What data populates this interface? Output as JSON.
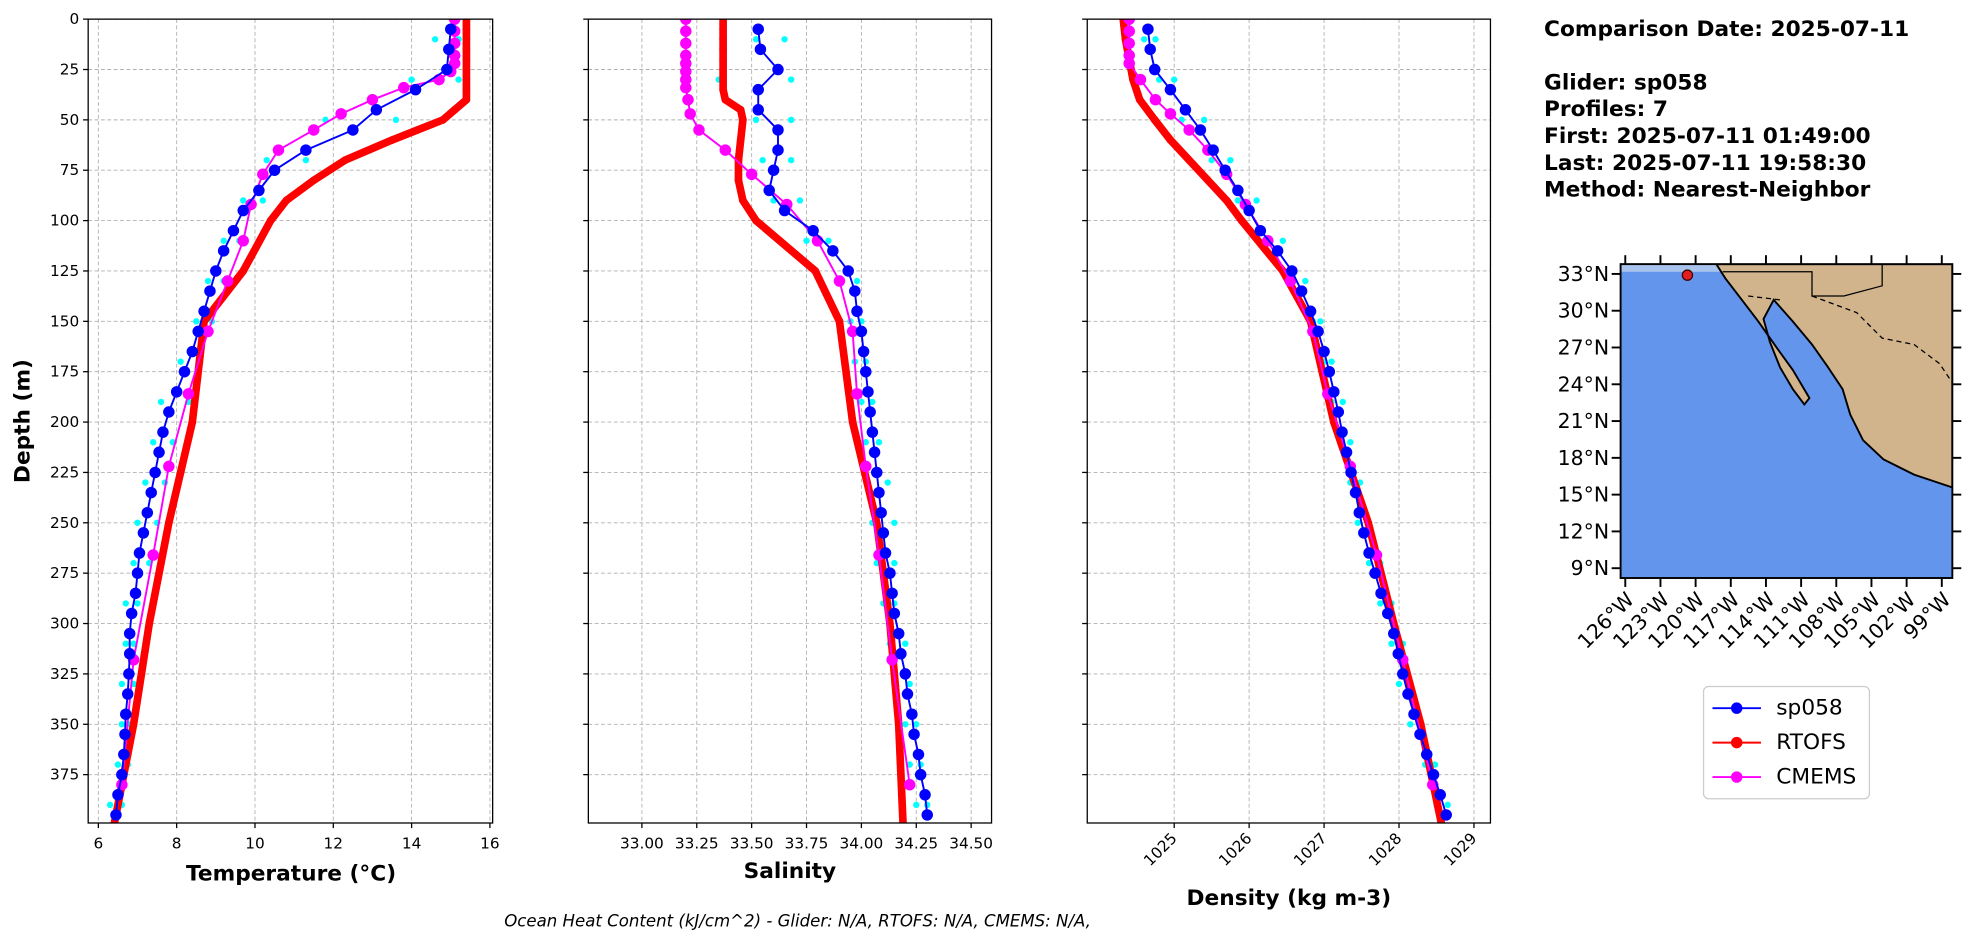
{
  "chart_data": [
    {
      "type": "profile",
      "xlabel": "Temperature (°C)",
      "ylabel": "Depth (m)",
      "xlim": [
        5.74,
        16.07
      ],
      "xticks": [
        6,
        8,
        10,
        12,
        14,
        16
      ],
      "ylim": [
        0,
        399
      ],
      "y_inverted": true,
      "yticks": [
        0,
        25,
        50,
        75,
        100,
        125,
        150,
        175,
        200,
        225,
        250,
        275,
        300,
        325,
        350,
        375
      ],
      "grid": true,
      "series": [
        {
          "color": "#00ffff",
          "marker_only": true,
          "y": [
            10,
            10,
            30,
            30,
            50,
            50,
            70,
            70,
            90,
            90,
            110,
            110,
            130,
            130,
            150,
            150,
            170,
            170,
            190,
            190,
            210,
            210,
            230,
            230,
            250,
            250,
            270,
            270,
            290,
            290,
            310,
            310,
            330,
            330,
            350,
            350,
            370,
            370,
            390,
            390
          ],
          "x": [
            14.6,
            15.2,
            14.0,
            15.2,
            11.8,
            13.6,
            10.3,
            11.3,
            9.7,
            10.2,
            9.2,
            9.6,
            8.8,
            9.2,
            8.5,
            8.9,
            8.1,
            8.6,
            7.6,
            8.3,
            7.4,
            7.9,
            7.2,
            7.7,
            7.0,
            7.5,
            6.9,
            7.3,
            6.7,
            7.0,
            6.7,
            6.9,
            6.6,
            6.9,
            6.6,
            6.8,
            6.5,
            6.75,
            6.3,
            6.6
          ]
        },
        {
          "name": "sp058",
          "color": "#0000ff",
          "y": [
            5,
            15,
            25,
            35,
            45,
            55,
            65,
            75,
            85,
            95,
            105,
            115,
            125,
            135,
            145,
            155,
            165,
            175,
            185,
            195,
            205,
            215,
            225,
            235,
            245,
            255,
            265,
            275,
            285,
            295,
            305,
            315,
            325,
            335,
            345,
            355,
            365,
            375,
            385,
            395
          ],
          "x": [
            15.0,
            14.95,
            14.9,
            14.1,
            13.1,
            12.5,
            11.3,
            10.5,
            10.1,
            9.7,
            9.45,
            9.2,
            9.0,
            8.85,
            8.7,
            8.55,
            8.4,
            8.2,
            8.0,
            7.8,
            7.65,
            7.55,
            7.45,
            7.35,
            7.25,
            7.15,
            7.05,
            7.0,
            6.95,
            6.85,
            6.8,
            6.8,
            6.78,
            6.75,
            6.7,
            6.68,
            6.65,
            6.6,
            6.5,
            6.45
          ]
        },
        {
          "name": "RTOFS",
          "color": "#ff0000",
          "y": [
            0,
            5,
            10,
            15,
            20,
            25,
            30,
            35,
            40,
            45,
            50,
            60,
            70,
            80,
            90,
            100,
            125,
            150,
            200,
            250,
            300,
            350,
            400
          ],
          "x": [
            15.4,
            15.4,
            15.4,
            15.4,
            15.4,
            15.4,
            15.4,
            15.4,
            15.4,
            15.1,
            14.8,
            13.5,
            12.3,
            11.5,
            10.8,
            10.4,
            9.7,
            8.7,
            8.4,
            7.8,
            7.3,
            6.9,
            6.4
          ]
        },
        {
          "name": "CMEMS",
          "color": "#ff00ff",
          "y": [
            0,
            6,
            12,
            18,
            22,
            26,
            30,
            34,
            40,
            47,
            55,
            65,
            77,
            92,
            110,
            130,
            155,
            186,
            222,
            266,
            318,
            380
          ],
          "x": [
            15.1,
            15.1,
            15.1,
            15.1,
            15.1,
            15.0,
            14.7,
            13.8,
            13.0,
            12.2,
            11.5,
            10.6,
            10.2,
            9.9,
            9.7,
            9.3,
            8.8,
            8.3,
            7.8,
            7.4,
            6.9,
            6.6
          ]
        }
      ]
    },
    {
      "type": "profile",
      "xlabel": "Salinity",
      "xlim": [
        32.756,
        34.593
      ],
      "xticks": [
        {
          "value": 33,
          "label": "33.00"
        },
        {
          "value": 33.25,
          "label": "33.25"
        },
        {
          "value": 33.5,
          "label": "33.50"
        },
        {
          "value": 33.75,
          "label": "33.75"
        },
        {
          "value": 34,
          "label": "34.00"
        },
        {
          "value": 34.25,
          "label": "34.25"
        },
        {
          "value": 34.5,
          "label": "34.50"
        }
      ],
      "ylim": [
        0,
        399
      ],
      "y_inverted": true,
      "yticks": [
        0,
        25,
        50,
        75,
        100,
        125,
        150,
        175,
        200,
        225,
        250,
        275,
        300,
        325,
        350,
        375
      ],
      "grid": true,
      "series": [
        {
          "color": "#00ffff",
          "marker_only": true,
          "y": [
            10,
            10,
            30,
            30,
            50,
            50,
            70,
            70,
            90,
            90,
            110,
            110,
            130,
            130,
            150,
            150,
            170,
            170,
            190,
            190,
            210,
            210,
            230,
            230,
            250,
            250,
            270,
            270,
            290,
            290,
            310,
            310,
            330,
            330,
            350,
            350,
            370,
            370,
            390,
            390
          ],
          "x": [
            33.52,
            33.65,
            33.35,
            33.68,
            33.52,
            33.68,
            33.55,
            33.68,
            33.6,
            33.72,
            33.75,
            33.85,
            33.9,
            33.98,
            33.95,
            34.0,
            33.97,
            34.02,
            34.0,
            34.05,
            34.02,
            34.08,
            34.03,
            34.12,
            34.05,
            34.15,
            34.07,
            34.15,
            34.1,
            34.15,
            34.13,
            34.2,
            34.15,
            34.22,
            34.2,
            34.25,
            34.22,
            34.27,
            34.25,
            34.3
          ]
        },
        {
          "color": "#0000ff",
          "y": [
            5,
            15,
            25,
            35,
            45,
            55,
            65,
            75,
            85,
            95,
            105,
            115,
            125,
            135,
            145,
            155,
            165,
            175,
            185,
            195,
            205,
            215,
            225,
            235,
            245,
            255,
            265,
            275,
            285,
            295,
            305,
            315,
            325,
            335,
            345,
            355,
            365,
            375,
            385,
            395
          ],
          "x": [
            33.53,
            33.54,
            33.62,
            33.53,
            33.53,
            33.62,
            33.62,
            33.6,
            33.58,
            33.65,
            33.78,
            33.87,
            33.94,
            33.97,
            33.98,
            34.0,
            34.01,
            34.02,
            34.03,
            34.04,
            34.05,
            34.06,
            34.07,
            34.08,
            34.09,
            34.1,
            34.11,
            34.13,
            34.14,
            34.15,
            34.17,
            34.18,
            34.2,
            34.21,
            34.23,
            34.24,
            34.26,
            34.27,
            34.29,
            34.3
          ]
        },
        {
          "color": "#ff0000",
          "y": [
            0,
            5,
            10,
            15,
            20,
            25,
            30,
            35,
            40,
            45,
            50,
            60,
            70,
            80,
            90,
            100,
            125,
            150,
            200,
            250,
            300,
            350,
            400
          ],
          "x": [
            33.37,
            33.37,
            33.37,
            33.37,
            33.37,
            33.37,
            33.37,
            33.37,
            33.38,
            33.45,
            33.46,
            33.45,
            33.44,
            33.44,
            33.46,
            33.52,
            33.79,
            33.9,
            33.96,
            34.07,
            34.13,
            34.17,
            34.19
          ]
        },
        {
          "color": "#ff00ff",
          "y": [
            0,
            6,
            12,
            18,
            22,
            26,
            30,
            34,
            40,
            47,
            55,
            65,
            77,
            92,
            110,
            130,
            155,
            186,
            222,
            266,
            318,
            380
          ],
          "x": [
            33.2,
            33.2,
            33.2,
            33.2,
            33.2,
            33.2,
            33.2,
            33.2,
            33.21,
            33.22,
            33.26,
            33.38,
            33.5,
            33.66,
            33.8,
            33.9,
            33.96,
            33.98,
            34.02,
            34.08,
            34.14,
            34.22
          ]
        }
      ]
    },
    {
      "type": "profile",
      "xlabel": "Density (kg m-3)",
      "xtick_rotation": 45,
      "xlim": [
        1023.84,
        1029.22
      ],
      "xticks": [
        1025,
        1026,
        1027,
        1028,
        1029
      ],
      "ylim": [
        0,
        399
      ],
      "y_inverted": true,
      "yticks": [
        0,
        25,
        50,
        75,
        100,
        125,
        150,
        175,
        200,
        225,
        250,
        275,
        300,
        325,
        350,
        375
      ],
      "grid": true,
      "series": [
        {
          "color": "#00ffff",
          "marker_only": true,
          "y": [
            10,
            10,
            30,
            30,
            50,
            50,
            70,
            70,
            90,
            90,
            110,
            110,
            130,
            130,
            150,
            150,
            170,
            170,
            190,
            190,
            210,
            210,
            230,
            230,
            250,
            250,
            270,
            270,
            290,
            290,
            310,
            310,
            330,
            330,
            350,
            350,
            370,
            370,
            390,
            390
          ],
          "x": [
            1024.6,
            1024.75,
            1024.8,
            1025.0,
            1025.1,
            1025.4,
            1025.5,
            1025.75,
            1025.85,
            1026.1,
            1026.25,
            1026.45,
            1026.6,
            1026.75,
            1026.85,
            1026.95,
            1027.0,
            1027.1,
            1027.1,
            1027.25,
            1027.22,
            1027.35,
            1027.35,
            1027.48,
            1027.45,
            1027.6,
            1027.6,
            1027.75,
            1027.75,
            1027.9,
            1027.9,
            1028.05,
            1028.0,
            1028.15,
            1028.15,
            1028.3,
            1028.35,
            1028.48,
            1028.5,
            1028.65
          ]
        },
        {
          "color": "#0000ff",
          "y": [
            5,
            15,
            25,
            35,
            45,
            55,
            65,
            75,
            85,
            95,
            105,
            115,
            125,
            135,
            145,
            155,
            165,
            175,
            185,
            195,
            205,
            215,
            225,
            235,
            245,
            255,
            265,
            275,
            285,
            295,
            305,
            315,
            325,
            335,
            345,
            355,
            365,
            375,
            385,
            395
          ],
          "x": [
            1024.65,
            1024.68,
            1024.74,
            1024.95,
            1025.15,
            1025.35,
            1025.52,
            1025.68,
            1025.85,
            1026.0,
            1026.15,
            1026.38,
            1026.57,
            1026.7,
            1026.82,
            1026.92,
            1027.0,
            1027.07,
            1027.13,
            1027.19,
            1027.24,
            1027.3,
            1027.36,
            1027.42,
            1027.47,
            1027.53,
            1027.6,
            1027.68,
            1027.76,
            1027.85,
            1027.93,
            1027.99,
            1028.05,
            1028.12,
            1028.2,
            1028.28,
            1028.37,
            1028.46,
            1028.55,
            1028.63
          ]
        },
        {
          "color": "#ff0000",
          "y": [
            0,
            10,
            20,
            30,
            40,
            50,
            60,
            70,
            80,
            90,
            100,
            125,
            150,
            200,
            250,
            300,
            350,
            400
          ],
          "x": [
            1024.32,
            1024.35,
            1024.4,
            1024.45,
            1024.54,
            1024.74,
            1024.95,
            1025.2,
            1025.45,
            1025.7,
            1025.9,
            1026.45,
            1026.82,
            1027.13,
            1027.59,
            1027.93,
            1028.29,
            1028.57
          ]
        },
        {
          "color": "#ff00ff",
          "y": [
            0,
            6,
            12,
            18,
            22,
            30,
            40,
            47,
            55,
            65,
            77,
            92,
            110,
            130,
            155,
            186,
            222,
            266,
            318,
            380
          ],
          "x": [
            1024.4,
            1024.4,
            1024.4,
            1024.4,
            1024.4,
            1024.55,
            1024.75,
            1024.95,
            1025.2,
            1025.45,
            1025.7,
            1025.95,
            1026.25,
            1026.55,
            1026.85,
            1027.05,
            1027.35,
            1027.7,
            1028.05,
            1028.45
          ]
        }
      ]
    }
  ],
  "info": [
    "Comparison Date: 2025-07-11",
    "Glider: sp058",
    "Profiles: 7",
    "First: 2025-07-11 01:49:00",
    "Last: 2025-07-11 19:58:30",
    "Method: Nearest-Neighbor"
  ],
  "map": {
    "xlim": [
      -126.4,
      -98.1
    ],
    "ylim": [
      8.2,
      33.8
    ],
    "xticks": [
      {
        "value": -126,
        "label": "126°W"
      },
      {
        "value": -123,
        "label": "123°W"
      },
      {
        "value": -120,
        "label": "120°W"
      },
      {
        "value": -117,
        "label": "117°W"
      },
      {
        "value": -114,
        "label": "114°W"
      },
      {
        "value": -111,
        "label": "111°W"
      },
      {
        "value": -108,
        "label": "108°W"
      },
      {
        "value": -105,
        "label": "105°W"
      },
      {
        "value": -102,
        "label": "102°W"
      },
      {
        "value": -99,
        "label": "99°W"
      }
    ],
    "yticks": [
      {
        "value": 33,
        "label": "33°N"
      },
      {
        "value": 30,
        "label": "30°N"
      },
      {
        "value": 27,
        "label": "27°N"
      },
      {
        "value": 24,
        "label": "24°N"
      },
      {
        "value": 21,
        "label": "21°N"
      },
      {
        "value": 18,
        "label": "18°N"
      },
      {
        "value": 15,
        "label": "15°N"
      },
      {
        "value": 12,
        "label": "12°N"
      },
      {
        "value": 9,
        "label": "9°N"
      }
    ],
    "glider": {
      "lon": -120.7,
      "lat": 32.9,
      "color": "#e02020"
    }
  },
  "footnote": "Ocean Heat Content (kJ/cm^2) - Glider: N/A,  RTOFS: N/A,  CMEMS: N/A,"
}
